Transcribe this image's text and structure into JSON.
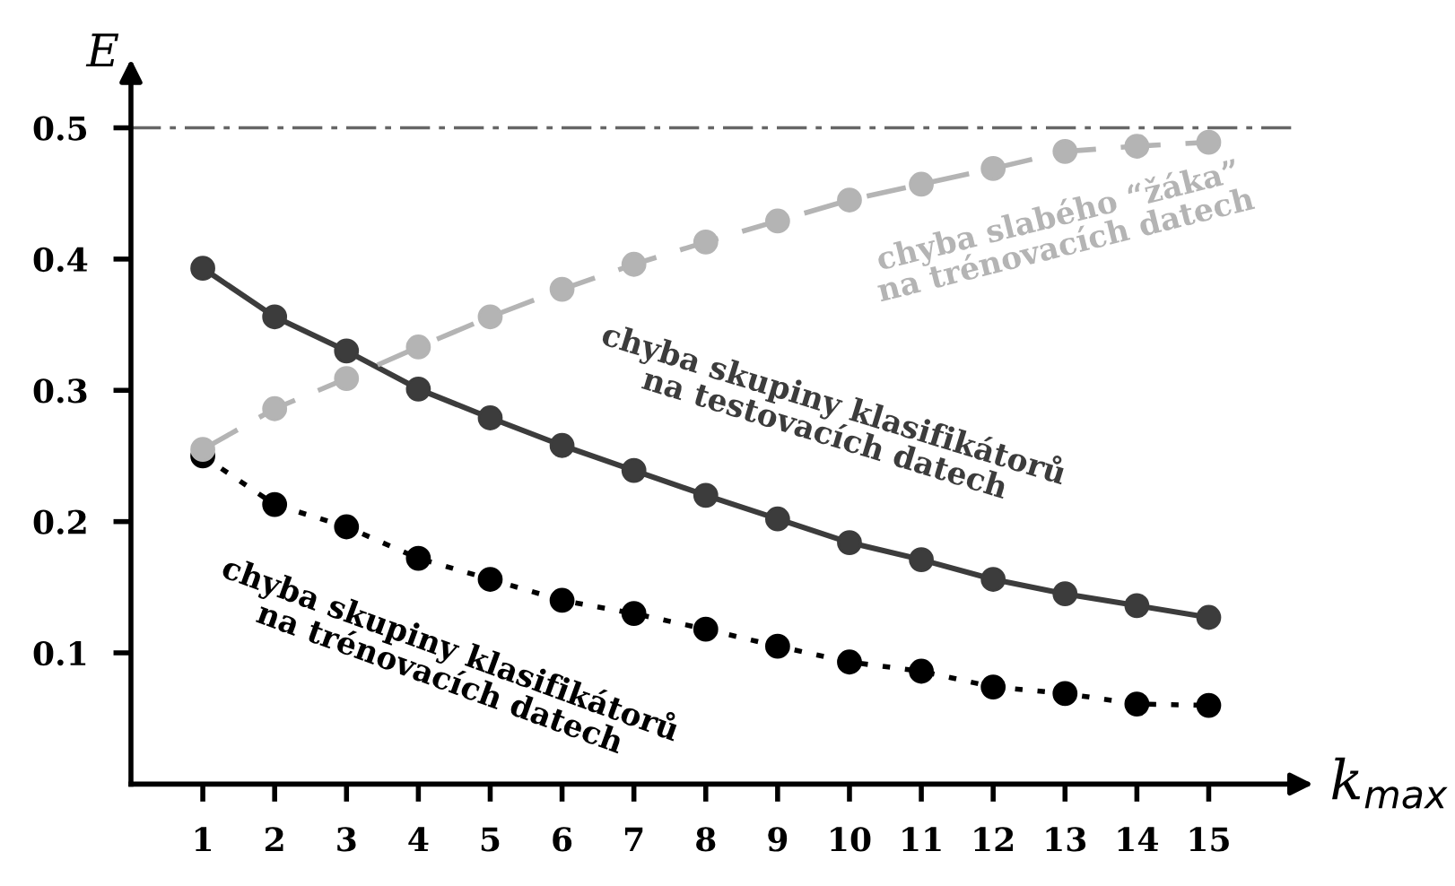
{
  "chart_data": {
    "type": "line",
    "xlabel": "k$_{max}$",
    "ylabel": "E",
    "x": [
      1,
      2,
      3,
      4,
      5,
      6,
      7,
      8,
      9,
      10,
      11,
      12,
      13,
      14,
      15
    ],
    "xlim": [
      0,
      16.2
    ],
    "ylim": [
      0,
      0.54
    ],
    "xticks": [
      1,
      2,
      3,
      4,
      5,
      6,
      7,
      8,
      9,
      10,
      11,
      12,
      13,
      14,
      15
    ],
    "yticks": [
      0.1,
      0.2,
      0.3,
      0.4,
      0.5
    ],
    "grid": false,
    "legend": false,
    "marker": "circle",
    "series": [
      {
        "name": "chyba slabého “žáka”\nna trénovacích datech",
        "color": "#b4b4b4",
        "line_style": "dashed",
        "values": [
          0.255,
          0.286,
          0.309,
          0.333,
          0.356,
          0.377,
          0.396,
          0.413,
          0.429,
          0.445,
          0.457,
          0.469,
          0.482,
          0.486,
          0.489
        ]
      },
      {
        "name": "chyba skupiny klasifikátorů\nna testovacích datech",
        "color": "#3c3c3c",
        "line_style": "solid",
        "values": [
          0.393,
          0.356,
          0.33,
          0.301,
          0.279,
          0.258,
          0.239,
          0.22,
          0.202,
          0.184,
          0.171,
          0.156,
          0.145,
          0.136,
          0.127
        ]
      },
      {
        "name": "chyba skupiny klasifikátorů\nna trénovacích datech",
        "color": "#000000",
        "line_style": "dotted",
        "values": [
          0.25,
          0.213,
          0.196,
          0.172,
          0.156,
          0.14,
          0.13,
          0.118,
          0.105,
          0.093,
          0.086,
          0.074,
          0.069,
          0.061,
          0.06
        ]
      }
    ],
    "ref_lines": [
      {
        "axis": "y",
        "value": 0.5,
        "label": null,
        "color": "#666666",
        "line_style": "dashdot"
      }
    ]
  }
}
